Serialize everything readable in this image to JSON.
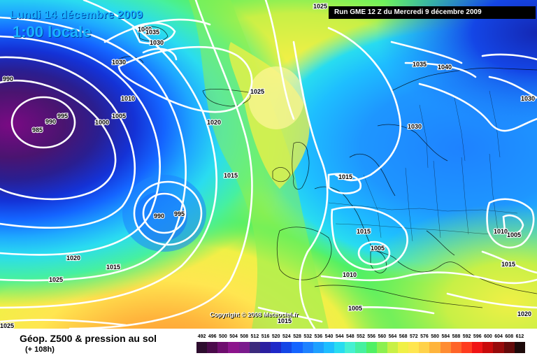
{
  "header": {
    "date": "Lundi 14 décembre 2009",
    "time": "1:00 locale",
    "run": "Run GME 12 Z du Mercredi 9 décembre 2009"
  },
  "copyright": "Copyright © 2008 Meteociel.fr",
  "legend": {
    "title": "Géop. Z500 & pression au sol",
    "subtitle": "(+ 108h)",
    "scale": [
      "492",
      "496",
      "500",
      "504",
      "508",
      "512",
      "516",
      "520",
      "524",
      "528",
      "532",
      "536",
      "540",
      "544",
      "548",
      "552",
      "556",
      "560",
      "564",
      "568",
      "572",
      "576",
      "580",
      "584",
      "588",
      "592",
      "596",
      "600",
      "604",
      "608",
      "612"
    ],
    "colors": [
      "#2d0d2e",
      "#4a0a4a",
      "#6e0d6e",
      "#8c148c",
      "#7a1a8c",
      "#3c2a7c",
      "#2a1ea0",
      "#1e28c8",
      "#1446e6",
      "#1464ff",
      "#1e82ff",
      "#1ea0ff",
      "#1ebeff",
      "#28dcf0",
      "#46f0d2",
      "#46f0a0",
      "#50f064",
      "#8cf050",
      "#c8f046",
      "#f0f046",
      "#ffe650",
      "#ffd24a",
      "#ffb43c",
      "#ff8c32",
      "#ff6428",
      "#ff3c1e",
      "#f01414",
      "#c80a0a",
      "#960a0a",
      "#640a0a",
      "#1e0a0a"
    ]
  },
  "isobar_labels": [
    "1025",
    "1040",
    "1035",
    "1030",
    "1030",
    "1010",
    "1005",
    "1000",
    "995",
    "990",
    "985",
    "990",
    "1020",
    "1015",
    "990",
    "995",
    "1020",
    "1015",
    "1025",
    "1025",
    "1025",
    "1035",
    "1040",
    "1030",
    "1030",
    "1015",
    "1015",
    "1005",
    "1010",
    "1005",
    "1010",
    "1005",
    "1015",
    "1020"
  ]
}
